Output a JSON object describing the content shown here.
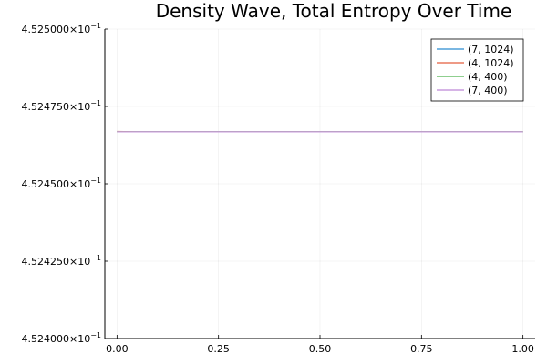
{
  "chart_data": {
    "type": "line",
    "title": "Density Wave, Total Entropy Over Time",
    "xlabel": "",
    "ylabel": "",
    "xlim": [
      -0.03,
      1.03
    ],
    "ylim": [
      0.4524,
      0.4525
    ],
    "xticks": [
      {
        "value": 0.0,
        "label": "0.00"
      },
      {
        "value": 0.25,
        "label": "0.25"
      },
      {
        "value": 0.5,
        "label": "0.50"
      },
      {
        "value": 0.75,
        "label": "0.75"
      },
      {
        "value": 1.0,
        "label": "1.00"
      }
    ],
    "yticks": [
      {
        "value": 0.4524,
        "label": "4.524000×10",
        "exp": "−1"
      },
      {
        "value": 0.452425,
        "label": "4.524250×10",
        "exp": "−1"
      },
      {
        "value": 0.45245,
        "label": "4.524500×10",
        "exp": "−1"
      },
      {
        "value": 0.452475,
        "label": "4.524750×10",
        "exp": "−1"
      },
      {
        "value": 0.4525,
        "label": "4.525000×10",
        "exp": "−1"
      }
    ],
    "grid": true,
    "legend_position": "top-right",
    "series": [
      {
        "name": "(7, 1024)",
        "color": "#4E9FD8",
        "x": [
          0.0,
          1.0
        ],
        "y": [
          0.4524668,
          0.4524668
        ]
      },
      {
        "name": "(4, 1024)",
        "color": "#E8785F",
        "x": [
          0.0,
          0.05,
          1.0
        ],
        "y": [
          0.4524669,
          0.4524668,
          0.4524668
        ]
      },
      {
        "name": "(4, 400)",
        "color": "#6ABF6A",
        "x": [
          0.0,
          1.0
        ],
        "y": [
          0.4524668,
          0.4524668
        ]
      },
      {
        "name": "(7, 400)",
        "color": "#C89BDE",
        "x": [
          0.0,
          1.0
        ],
        "y": [
          0.4524668,
          0.4524668
        ]
      }
    ]
  }
}
